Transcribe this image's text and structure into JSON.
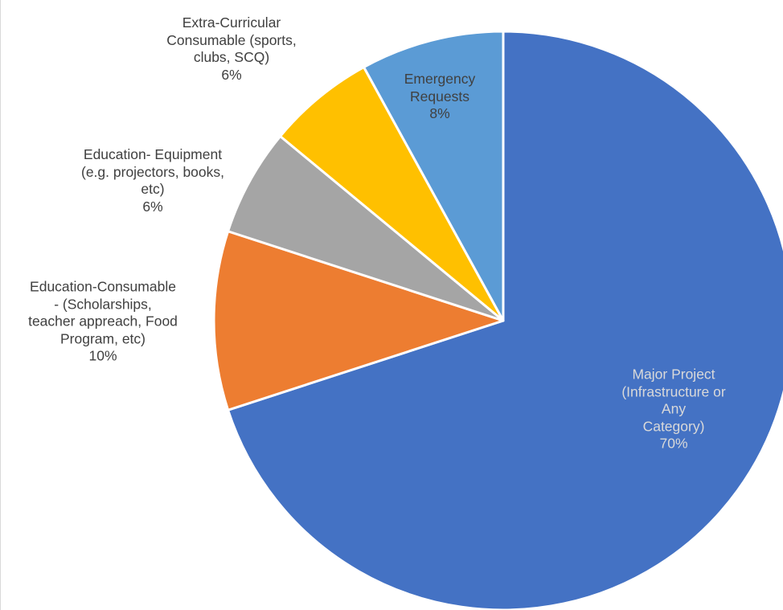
{
  "chart_data": {
    "type": "pie",
    "title": "",
    "labels_position": "data labels with category name and percentage",
    "slices": [
      {
        "name": "Major Project\n(Infrastructure or Any\nCategory)",
        "value": 70,
        "value_label": "70%",
        "color": "#4472C4",
        "label_color": "#D9D9D9"
      },
      {
        "name": "Education-Consumable\n-  (Scholarships,\nteacher appreach, Food\nProgram, etc)",
        "value": 10,
        "value_label": "10%",
        "color": "#ED7D31",
        "label_color": "#404040"
      },
      {
        "name": "Education- Equipment\n(e.g. projectors, books,\netc)",
        "value": 6,
        "value_label": "6%",
        "color": "#A5A5A5",
        "label_color": "#404040"
      },
      {
        "name": "Extra-Curricular\nConsumable (sports,\nclubs, SCQ)",
        "value": 6,
        "value_label": "6%",
        "color": "#FFC000",
        "label_color": "#404040"
      },
      {
        "name": "Emergency\nRequests",
        "value": 8,
        "value_label": "8%",
        "color": "#5B9BD5",
        "label_color": "#404040"
      }
    ]
  }
}
